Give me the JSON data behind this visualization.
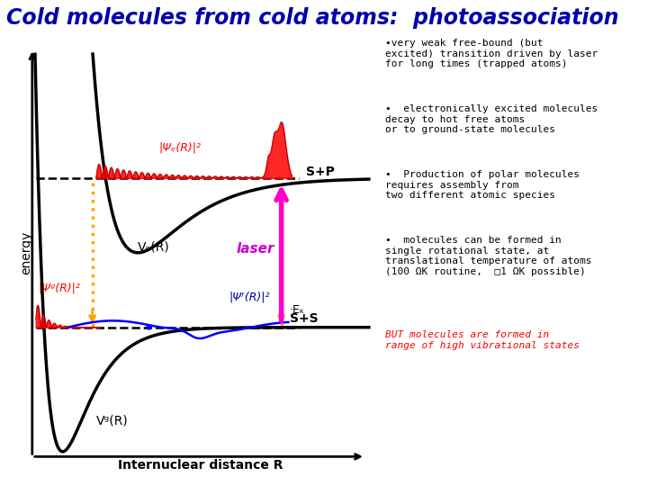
{
  "title": "Cold molecules from cold atoms:  photoassociation",
  "title_color": "#0000aa",
  "title_fontsize": 17,
  "bg_color": "#ffffff",
  "xlabel": "Internuclear distance R",
  "ylabel": "energy"
}
